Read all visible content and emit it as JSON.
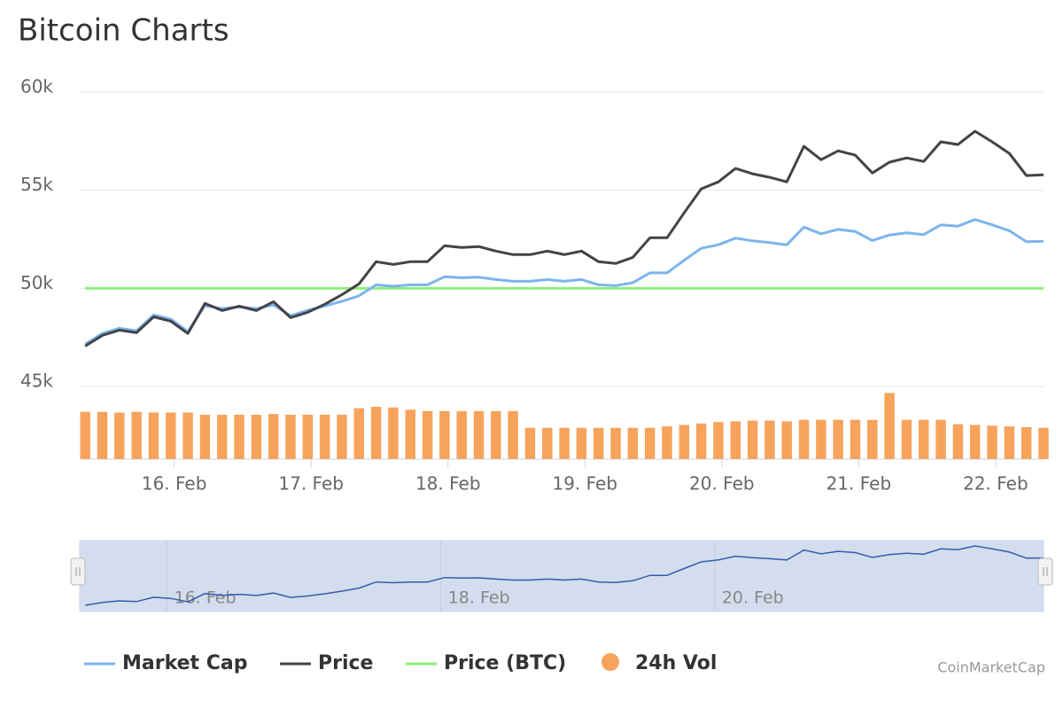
{
  "chart_data": {
    "type": "line",
    "title": "Bitcoin Charts",
    "x": [
      15.35,
      15.475,
      15.6,
      15.725,
      15.85,
      15.975,
      16.1,
      16.225,
      16.35,
      16.475,
      16.6,
      16.725,
      16.85,
      16.975,
      17.1,
      17.225,
      17.35,
      17.475,
      17.6,
      17.725,
      17.85,
      17.975,
      18.1,
      18.225,
      18.35,
      18.475,
      18.6,
      18.725,
      18.85,
      18.975,
      19.1,
      19.225,
      19.35,
      19.475,
      19.6,
      19.725,
      19.85,
      19.975,
      20.1,
      20.225,
      20.35,
      20.475,
      20.6,
      20.725,
      20.85,
      20.975,
      21.1,
      21.225,
      21.35,
      21.475,
      21.6,
      21.725,
      21.85,
      21.975,
      22.1,
      22.225,
      22.35
    ],
    "xlim": [
      15.31,
      22.35
    ],
    "xticks": [
      {
        "value": 16,
        "label": "16. Feb"
      },
      {
        "value": 17,
        "label": "17. Feb"
      },
      {
        "value": 18,
        "label": "18. Feb"
      },
      {
        "value": 19,
        "label": "19. Feb"
      },
      {
        "value": 20,
        "label": "20. Feb"
      },
      {
        "value": 21,
        "label": "21. Feb"
      },
      {
        "value": 22,
        "label": "22. Feb"
      }
    ],
    "ylim": [
      41300,
      60000
    ],
    "yticks": [
      {
        "value": 45000,
        "label": "45k"
      },
      {
        "value": 50000,
        "label": "50k"
      },
      {
        "value": 55000,
        "label": "55k"
      },
      {
        "value": 60000,
        "label": "60k"
      }
    ],
    "y2lim": [
      0,
      100
    ],
    "grid": true,
    "legend": "bottom",
    "series": [
      {
        "name": "Market Cap",
        "color": "#7cb5ec",
        "values": [
          47160,
          47700,
          47970,
          47840,
          48650,
          48430,
          47800,
          49120,
          48970,
          49050,
          48970,
          49160,
          48610,
          48880,
          49100,
          49340,
          49620,
          50180,
          50110,
          50180,
          50180,
          50590,
          50540,
          50570,
          50450,
          50360,
          50360,
          50450,
          50360,
          50450,
          50180,
          50140,
          50290,
          50790,
          50790,
          51430,
          52040,
          52220,
          52560,
          52420,
          52330,
          52220,
          53120,
          52780,
          53010,
          52900,
          52440,
          52720,
          52830,
          52740,
          53240,
          53170,
          53510,
          53240,
          52940,
          52380,
          52400
        ]
      },
      {
        "name": "Price",
        "color": "#434348",
        "values": [
          47060,
          47600,
          47870,
          47740,
          48550,
          48330,
          47700,
          49230,
          48870,
          49090,
          48870,
          49320,
          48510,
          48780,
          49190,
          49680,
          50230,
          51360,
          51220,
          51360,
          51360,
          52170,
          52080,
          52130,
          51900,
          51720,
          51720,
          51900,
          51720,
          51900,
          51360,
          51270,
          51580,
          52580,
          52580,
          53850,
          55070,
          55430,
          56110,
          55840,
          55660,
          55430,
          57240,
          56560,
          57010,
          56790,
          55880,
          56430,
          56650,
          56470,
          57470,
          57330,
          58010,
          57470,
          56880,
          55750,
          55790
        ]
      },
      {
        "name": "Price (BTC)",
        "color": "#90ed7d",
        "x": [
          15.35,
          22.35
        ],
        "values": [
          50000,
          50000
        ]
      },
      {
        "name": "24h Vol",
        "color": "#f7a35c",
        "type": "bar",
        "axis": "y2",
        "values": [
          65,
          65,
          64,
          65,
          64,
          64,
          64,
          61,
          61,
          61,
          61,
          62,
          61,
          61,
          61,
          61,
          70,
          72,
          71,
          68,
          66,
          66,
          66,
          66,
          66,
          66,
          43,
          43,
          43,
          43,
          43,
          43,
          43,
          43,
          45,
          47,
          49,
          51,
          52,
          53,
          53,
          52,
          54,
          54,
          54,
          54,
          54,
          91,
          54,
          54,
          54,
          48,
          47,
          46,
          45,
          44,
          43
        ]
      }
    ],
    "credits": "CoinMarketCap"
  }
}
